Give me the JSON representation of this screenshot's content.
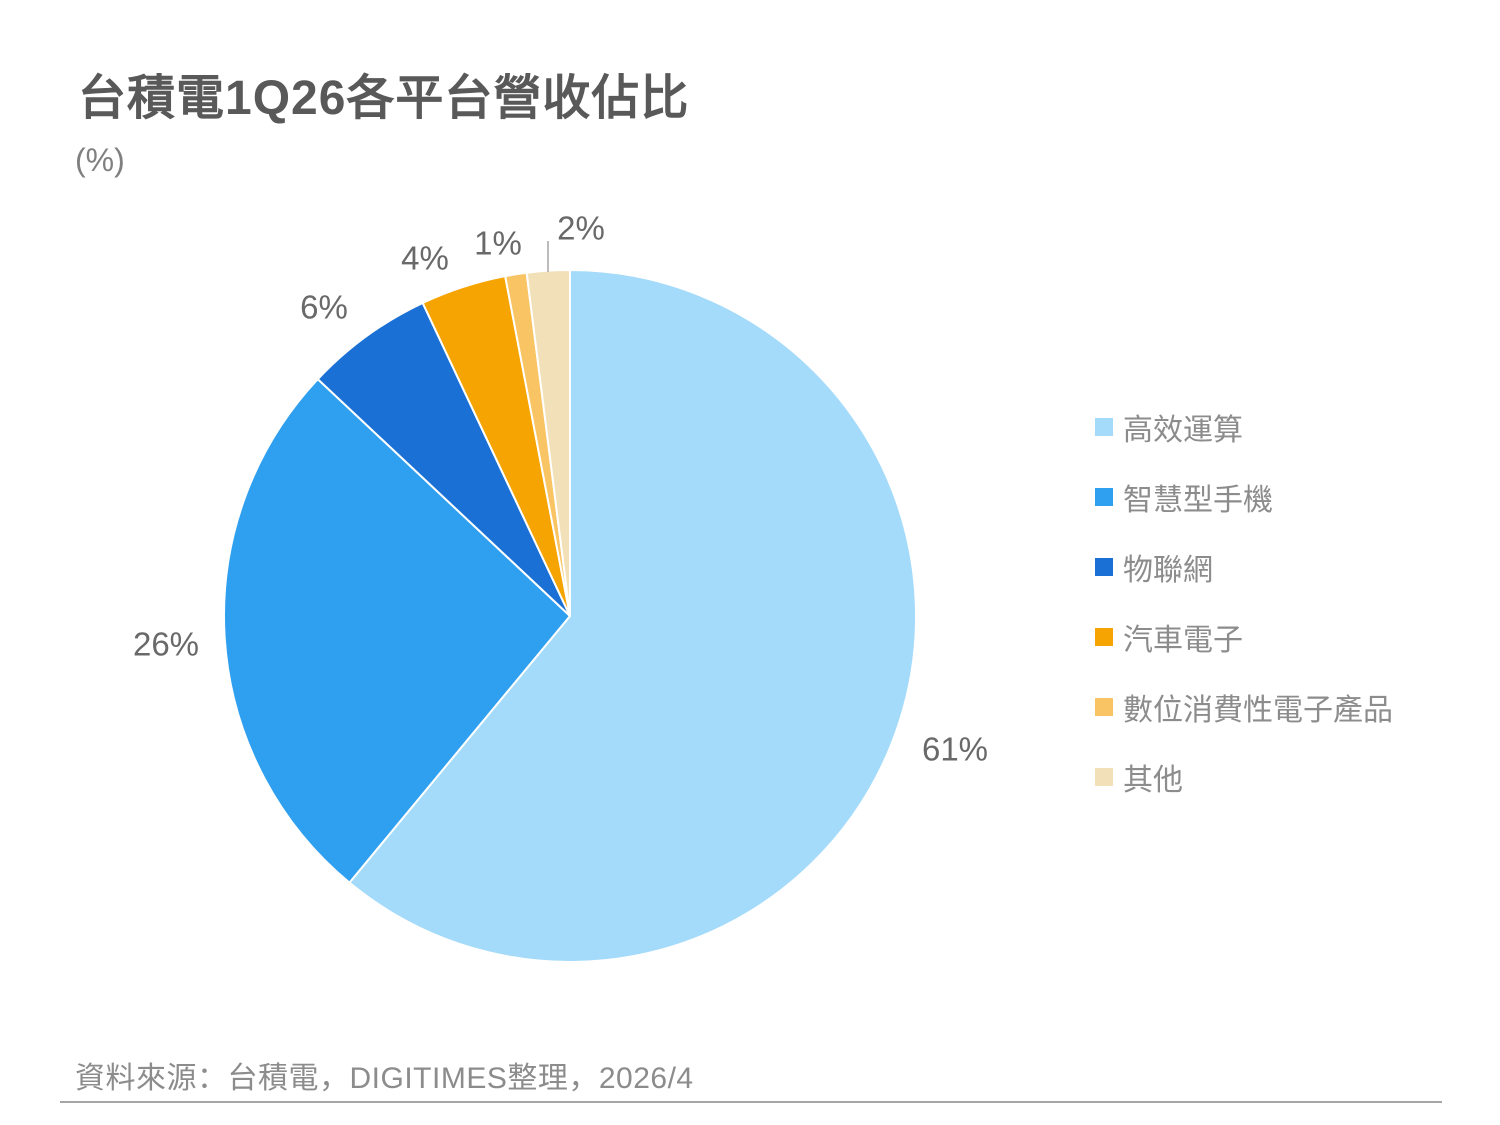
{
  "title": "台積電1Q26各平台營收佔比",
  "unit_label": "(%)",
  "source_note": "資料來源：台積電，DIGITIMES整理，2026/4",
  "colors": {
    "background": "#FFFFFF",
    "title_text": "#595959",
    "subtitle_text": "#808080",
    "data_label_text": "#696969",
    "legend_text": "#8C8C8C",
    "footer_text": "#8C8C8C",
    "divider_line": "#A6A6A6",
    "leader_line": "#A6A6A6",
    "slice_border": "#FFFFFF"
  },
  "chart_data": {
    "type": "pie",
    "title": "台積電1Q26各平台營收佔比",
    "unit": "%",
    "start_angle_deg": 0,
    "direction": "clockwise",
    "grid": false,
    "legend_position": "right",
    "slices": [
      {
        "key": "hpc",
        "label": "高效運算",
        "value": 61,
        "data_label": "61%",
        "color": "#A5DBFA"
      },
      {
        "key": "smartphone",
        "label": "智慧型手機",
        "value": 26,
        "data_label": "26%",
        "color": "#2F9FF0"
      },
      {
        "key": "iot",
        "label": "物聯網",
        "value": 6,
        "data_label": "6%",
        "color": "#1A70D4"
      },
      {
        "key": "automotive",
        "label": "汽車電子",
        "value": 4,
        "data_label": "4%",
        "color": "#F5A402"
      },
      {
        "key": "digital-consumer-electronics",
        "label": "數位消費性電子產品",
        "value": 1,
        "data_label": "1%",
        "color": "#F9C463"
      },
      {
        "key": "others",
        "label": "其他",
        "value": 2,
        "data_label": "2%",
        "color": "#F2E1B8"
      }
    ]
  }
}
